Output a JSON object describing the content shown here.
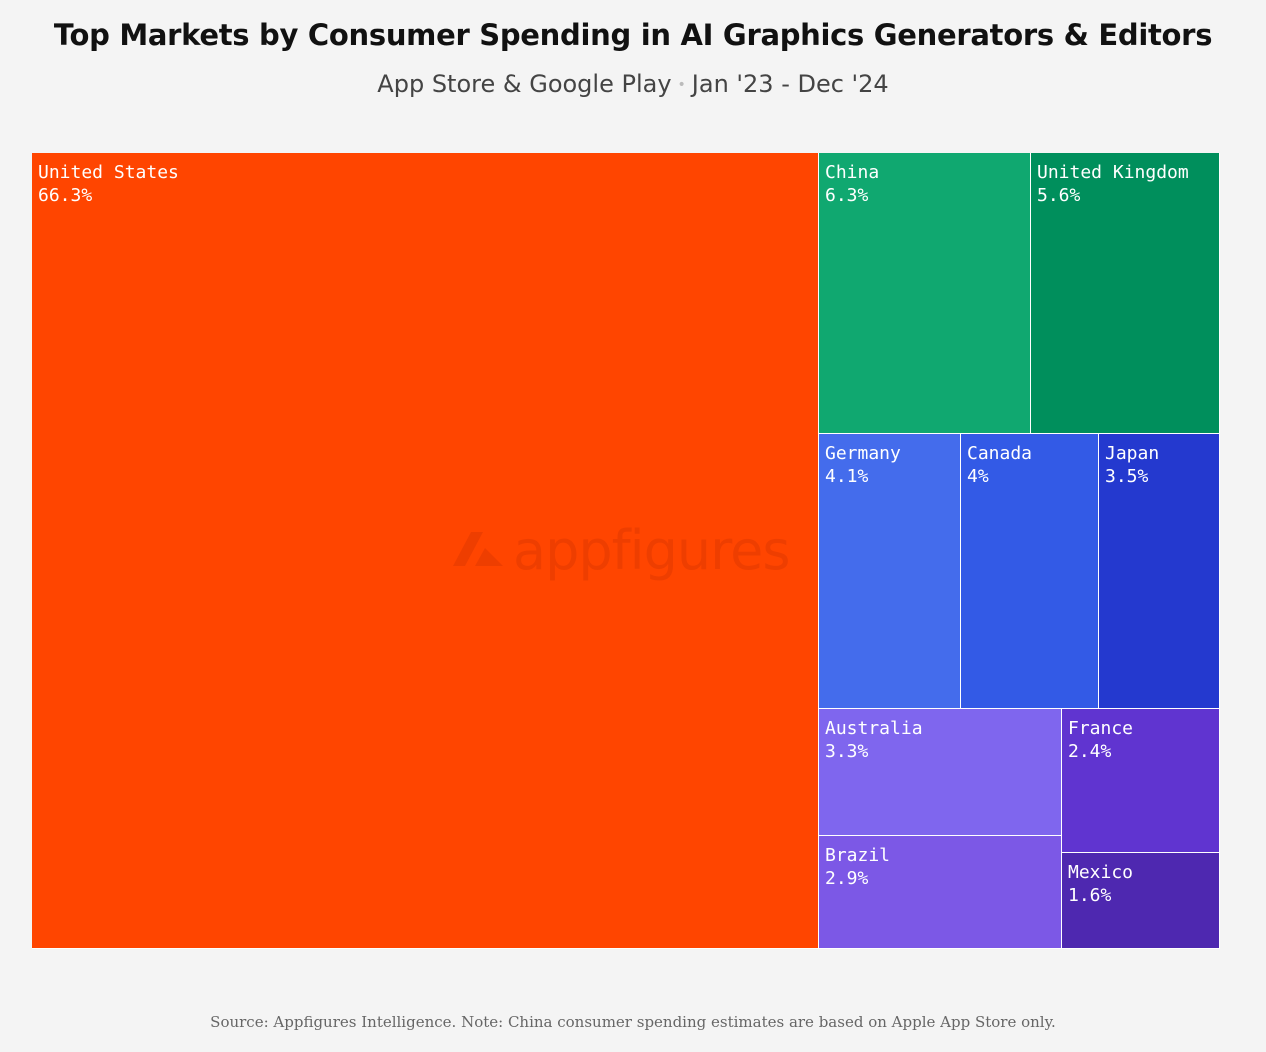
{
  "header": {
    "title": "Top Markets by Consumer Spending in AI Graphics Generators & Editors",
    "subtitle_source": "App Store & Google Play",
    "subtitle_dot": "•",
    "subtitle_period": "Jan '23 - Dec '24"
  },
  "watermark": {
    "text": "appfigures",
    "icon": "appfigures-logo-icon"
  },
  "footer": {
    "note": "Source: Appfigures Intelligence.  Note: China consumer spending estimates are based on Apple App Store only."
  },
  "chart_data": {
    "type": "treemap",
    "unit": "%",
    "items": [
      {
        "name": "United States",
        "label": "66.3%",
        "value": 66.3,
        "color": "#ff4500"
      },
      {
        "name": "China",
        "label": "6.3%",
        "value": 6.3,
        "color": "#10a870"
      },
      {
        "name": "United Kingdom",
        "label": "5.6%",
        "value": 5.6,
        "color": "#008f5c"
      },
      {
        "name": "Germany",
        "label": "4.1%",
        "value": 4.1,
        "color": "#446cec"
      },
      {
        "name": "Canada",
        "label": "4%",
        "value": 4.0,
        "color": "#335ae6"
      },
      {
        "name": "Japan",
        "label": "3.5%",
        "value": 3.5,
        "color": "#2439cf"
      },
      {
        "name": "Australia",
        "label": "3.3%",
        "value": 3.3,
        "color": "#7f66ee"
      },
      {
        "name": "Brazil",
        "label": "2.9%",
        "value": 2.9,
        "color": "#7c58e6"
      },
      {
        "name": "France",
        "label": "2.4%",
        "value": 2.4,
        "color": "#6034d0"
      },
      {
        "name": "Mexico",
        "label": "1.6%",
        "value": 1.6,
        "color": "#4e28b0"
      }
    ]
  }
}
